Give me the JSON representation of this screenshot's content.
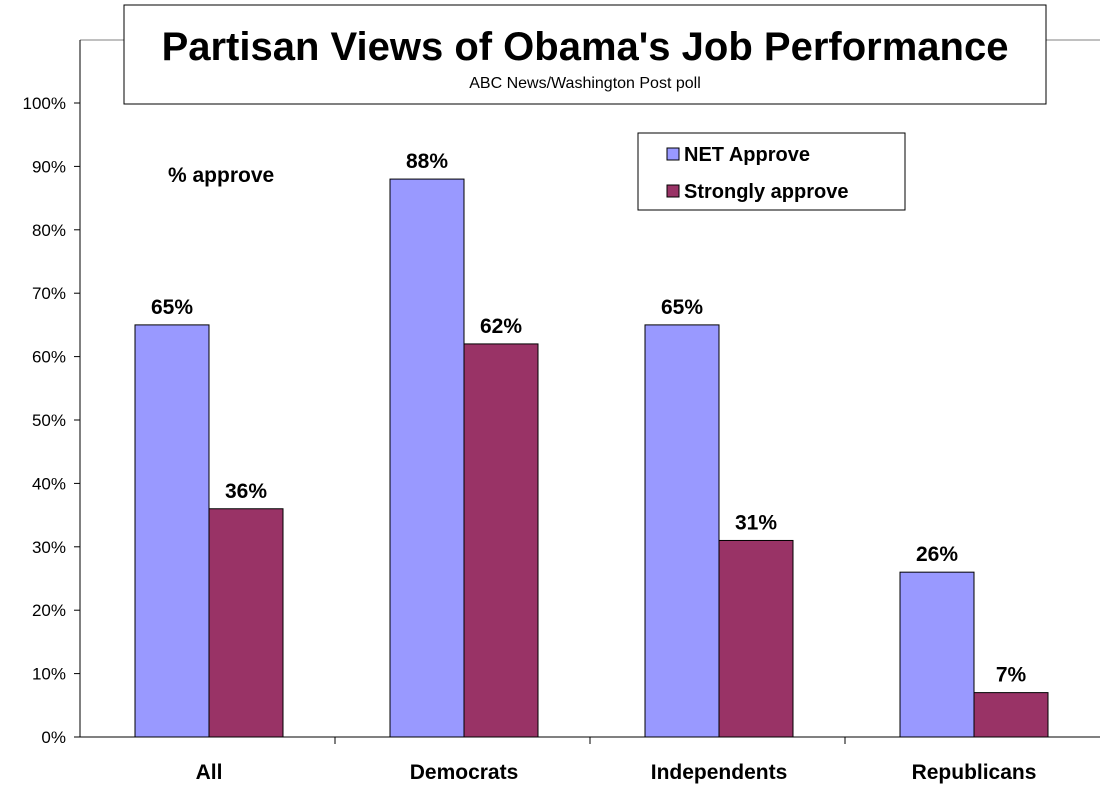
{
  "chart_data": {
    "type": "bar",
    "title": "Partisan Views of Obama's Job Performance",
    "subtitle": "ABC News/Washington Post poll",
    "annotation": "% approve",
    "categories": [
      "All",
      "Democrats",
      "Independents",
      "Republicans"
    ],
    "series": [
      {
        "name": "NET Approve",
        "color": "#9999ff",
        "values": [
          65,
          88,
          65,
          26
        ],
        "labels": [
          "65%",
          "88%",
          "65%",
          "26%"
        ]
      },
      {
        "name": "Strongly approve",
        "color": "#993366",
        "values": [
          36,
          62,
          31,
          7
        ],
        "labels": [
          "36%",
          "62%",
          "31%",
          "7%"
        ]
      }
    ],
    "ylim": [
      0,
      100
    ],
    "yticks": [
      0,
      10,
      20,
      30,
      40,
      50,
      60,
      70,
      80,
      90,
      100
    ],
    "ytick_labels": [
      "0%",
      "10%",
      "20%",
      "30%",
      "40%",
      "50%",
      "60%",
      "70%",
      "80%",
      "90%",
      "100%"
    ],
    "grid": false,
    "legend_position": "top-right"
  }
}
